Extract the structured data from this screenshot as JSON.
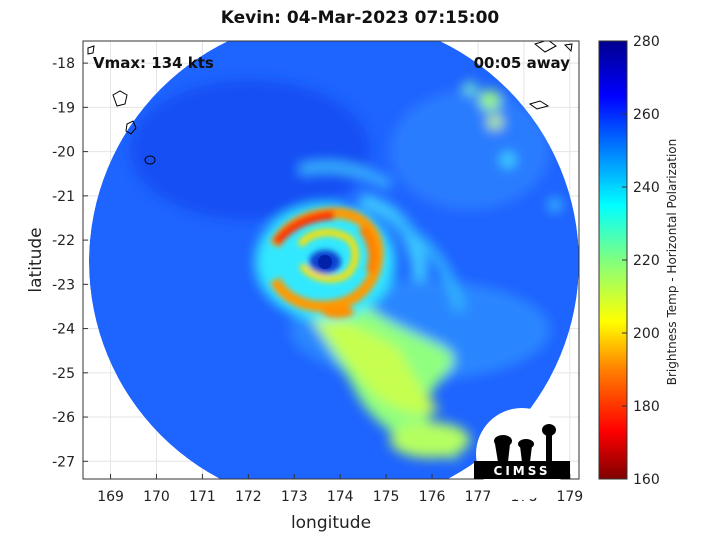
{
  "chart_data": {
    "type": "heatmap",
    "title": "Kevin: 04-Mar-2023 07:15:00",
    "xlabel": "longitude",
    "ylabel": "latitude",
    "xlim": [
      168.4,
      179.2
    ],
    "ylim": [
      -27.4,
      -17.5
    ],
    "xticks": [
      "169",
      "170",
      "171",
      "172",
      "173",
      "174",
      "175",
      "176",
      "177",
      "178",
      "179"
    ],
    "yticks": [
      "-18",
      "-19",
      "-20",
      "-21",
      "-22",
      "-23",
      "-24",
      "-25",
      "-26",
      "-27"
    ],
    "colorbar": {
      "label": "Brightness Temp - Horizontal Polarization",
      "min": 160,
      "max": 280,
      "ticks": [
        "280",
        "260",
        "240",
        "220",
        "200",
        "180",
        "160"
      ],
      "colormap": [
        "#7f0000",
        "#ff0000",
        "#ff8000",
        "#ffff00",
        "#80ff80",
        "#00ffff",
        "#0080ff",
        "#0000ff",
        "#00008f"
      ]
    },
    "storm_center": {
      "lon": 173.6,
      "lat": -22.45
    },
    "annotations": {
      "vmax": "Vmax: 134 kts",
      "time_offset": "00:05 away"
    },
    "grid": true
  },
  "logo": {
    "text": "CIMSS"
  }
}
